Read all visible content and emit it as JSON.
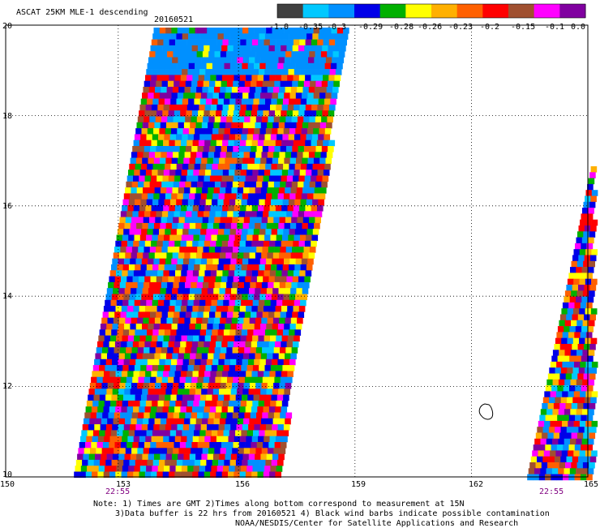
{
  "header": {
    "product": "ASCAT 25KM MLE-1 descending",
    "date": "20160521"
  },
  "colorbar": {
    "colors": [
      "#404040",
      "#00c8ff",
      "#0090ff",
      "#0000e8",
      "#00b000",
      "#ffff00",
      "#ffb000",
      "#ff6000",
      "#ff0000",
      "#a05030",
      "#ff00ff",
      "#8000a0"
    ],
    "labels": [
      "-1.0",
      "-0.35",
      "-0.3",
      "-0.29",
      "-0.28",
      "-0.26",
      "-0.23",
      "-0.2",
      "-0.15",
      "-0.1",
      "0.0"
    ]
  },
  "axes": {
    "lon_ticks": [
      "150",
      "153",
      "156",
      "159",
      "162",
      "165"
    ],
    "lat_ticks": [
      "20",
      "18",
      "16",
      "14",
      "12",
      "10"
    ],
    "lon_range": [
      150,
      165
    ],
    "lat_range": [
      10,
      20
    ]
  },
  "pass_times": [
    "22:55",
    "22:55"
  ],
  "notes": {
    "line1": "Note: 1) Times are GMT 2)Times along bottom correspond to measurement at 15N",
    "line2": "3)Data buffer is 22 hrs from 20160521 4) Black wind barbs indicate possible contamination",
    "line3": "NOAA/NESDIS/Center for Satellite Applications and Research"
  }
}
